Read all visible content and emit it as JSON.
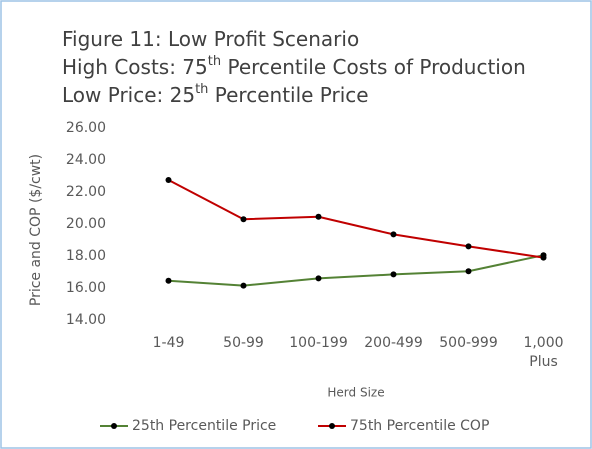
{
  "chart_data": {
    "type": "line",
    "title": [
      [
        "Figure 11:   Low Profit Scenario"
      ],
      [
        "High Costs:  75",
        "th",
        " Percentile Costs of Production"
      ],
      [
        "Low Price:    25",
        "th",
        " Percentile Price"
      ]
    ],
    "x_label": "Herd Size",
    "y_label": "Price and COP ($/cwt)",
    "categories": [
      "1-49",
      "50-99",
      "100-199",
      "200-499",
      "500-999",
      "1,000 Plus"
    ],
    "series": [
      {
        "name": "25th Percentile Price",
        "color": "#548235",
        "values": [
          16.45,
          16.15,
          16.6,
          16.85,
          17.05,
          18.05
        ]
      },
      {
        "name": "75th Percentile COP",
        "color": "#c00000",
        "values": [
          22.75,
          20.3,
          20.45,
          19.35,
          18.6,
          17.9
        ]
      }
    ],
    "ylim": [
      14,
      26
    ],
    "yticks": [
      {
        "value": 14,
        "label": "14.00"
      },
      {
        "value": 16,
        "label": "16.00"
      },
      {
        "value": 18,
        "label": "18.00"
      },
      {
        "value": 20,
        "label": "20.00"
      },
      {
        "value": 22,
        "label": "22.00"
      },
      {
        "value": 24,
        "label": "24.00"
      },
      {
        "value": 26,
        "label": "26.00"
      }
    ],
    "legend": "bottom",
    "marker_color": "#000000"
  }
}
